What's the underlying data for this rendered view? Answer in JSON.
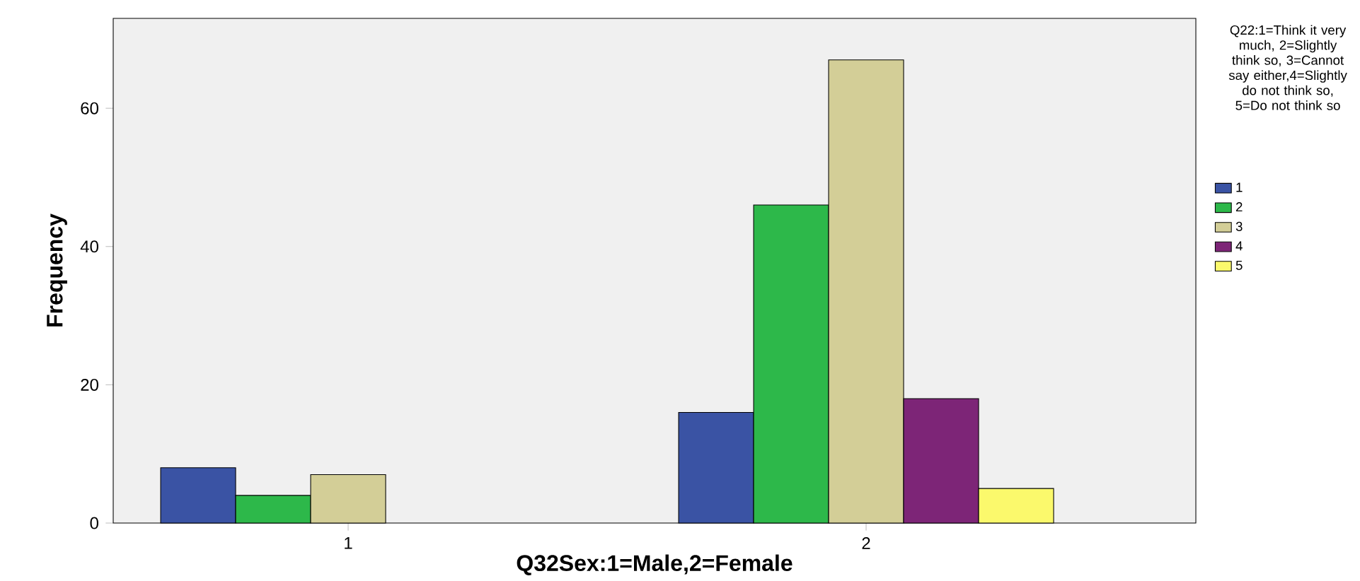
{
  "chart_data": {
    "type": "bar",
    "xlabel": "Q32Sex:1=Male,2=Female",
    "ylabel": "Frequency",
    "legend_title": "Q22:1=Think it very much, 2=Slightly think so, 3=Cannot say either,4=Slightly do not think so, 5=Do not think so",
    "categories": [
      "1",
      "2"
    ],
    "series": [
      {
        "name": "1",
        "color": "#3a53a4",
        "values": [
          8,
          16
        ]
      },
      {
        "name": "2",
        "color": "#2db84a",
        "values": [
          4,
          46
        ]
      },
      {
        "name": "3",
        "color": "#d3ce97",
        "values": [
          7,
          67
        ]
      },
      {
        "name": "4",
        "color": "#7d2577",
        "values": [
          null,
          18
        ]
      },
      {
        "name": "5",
        "color": "#fbf96c",
        "values": [
          null,
          5
        ]
      }
    ],
    "ylim": [
      0,
      73
    ],
    "yticks": [
      0,
      20,
      40,
      60
    ],
    "grid": false,
    "legend": "right"
  }
}
